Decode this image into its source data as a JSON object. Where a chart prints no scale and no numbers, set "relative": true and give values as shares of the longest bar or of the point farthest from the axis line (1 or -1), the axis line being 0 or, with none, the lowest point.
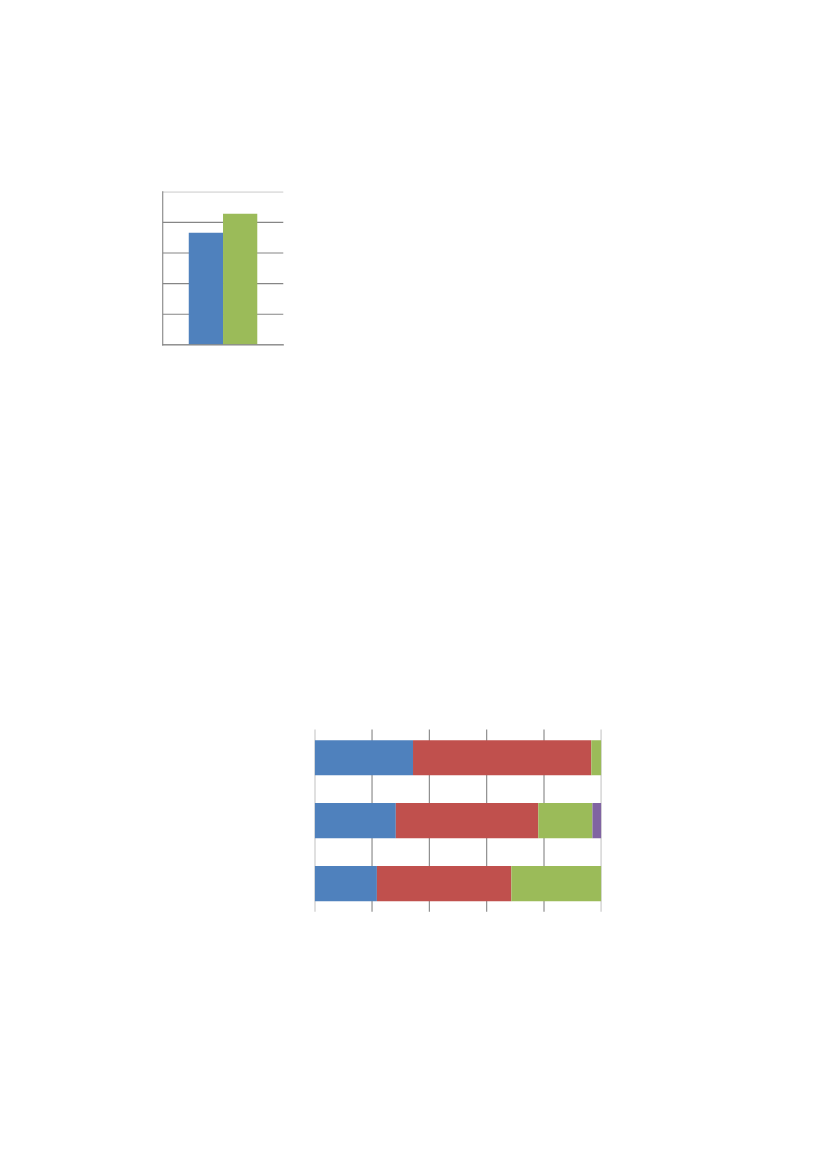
{
  "chart_data": [
    {
      "type": "bar",
      "relative": true,
      "categories": [
        null
      ],
      "grid": "y",
      "tick_labels": false,
      "series": [
        {
          "color": "#4f81bd",
          "values": [
            0.855
          ]
        },
        {
          "color": "#9bbb59",
          "values": [
            1
          ]
        }
      ]
    },
    {
      "type": "bar",
      "relative": true,
      "orientation": "horizontal",
      "stacked": true,
      "categories": [
        null,
        null,
        null
      ],
      "grid": "x",
      "tick_labels": false,
      "series": [
        {
          "color": "#4f81bd",
          "values": [
            0.343,
            0.283,
            0.217
          ]
        },
        {
          "color": "#c0504d",
          "values": [
            0.622,
            0.497,
            0.469
          ]
        },
        {
          "color": "#9bbb59",
          "values": [
            0.035,
            0.189,
            0.314
          ]
        },
        {
          "color": "#8064a2",
          "values": [
            0,
            0.031,
            0
          ]
        }
      ]
    }
  ]
}
